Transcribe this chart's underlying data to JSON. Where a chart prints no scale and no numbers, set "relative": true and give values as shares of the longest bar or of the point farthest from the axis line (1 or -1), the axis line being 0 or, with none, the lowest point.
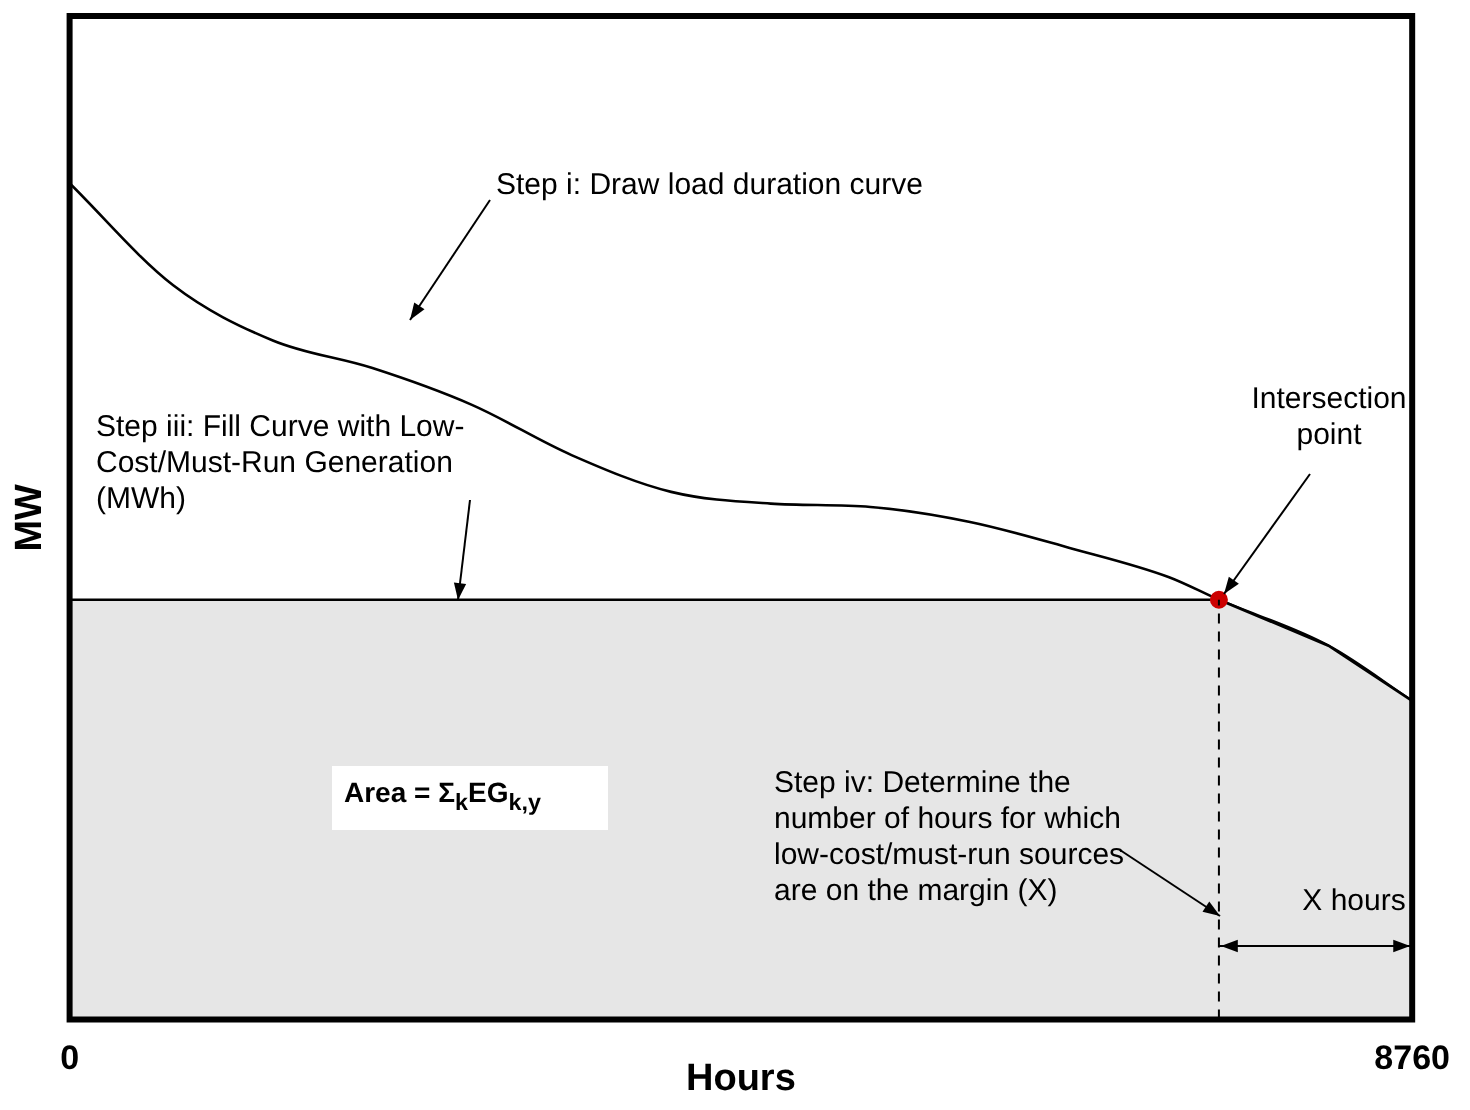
{
  "chart_data": {
    "type": "line",
    "relative": true,
    "xlabel": "Hours",
    "ylabel": "MW",
    "xlim": [
      0,
      8760
    ],
    "xticks": [
      0,
      8760
    ],
    "grid": false,
    "legend": false,
    "tick_labels": "x",
    "series": [
      {
        "marker": "none",
        "color": "#000000",
        "x": [
          0,
          676,
          1326,
          1976,
          2625,
          3275,
          3925,
          4575,
          5225,
          5875,
          6525,
          7174,
          7499,
          8214,
          8760
        ],
        "values": [
          1.0,
          0.878,
          0.812,
          0.779,
          0.735,
          0.675,
          0.631,
          0.617,
          0.613,
          0.595,
          0.564,
          0.529,
          0.502,
          0.447,
          0.381
        ]
      },
      {
        "type": "area",
        "marker": "none",
        "color": "#e6e6e6",
        "x": [
          0,
          7499,
          8214,
          8760
        ],
        "values": [
          0.502,
          0.502,
          0.447,
          0.381
        ]
      },
      {
        "type": "scatter",
        "marker": "circle",
        "color": "#cc0000",
        "x": [
          7499
        ],
        "values": [
          0.502
        ]
      }
    ],
    "ref_lines": [
      {
        "axis": "x",
        "value": 7499,
        "line_style": "dashed",
        "color": "#000000"
      }
    ],
    "annotations": [
      "Step i: Draw load duration curve",
      "Step iii: Fill Curve with Low-Cost/Must-Run Generation (MWh)",
      "Intersection point",
      "Area = Σ$_{k}$EG$_{k,y}$",
      "Step iv: Determine the number of hours for which low-cost/must-run sources are on the margin (X)",
      "X hours"
    ]
  }
}
